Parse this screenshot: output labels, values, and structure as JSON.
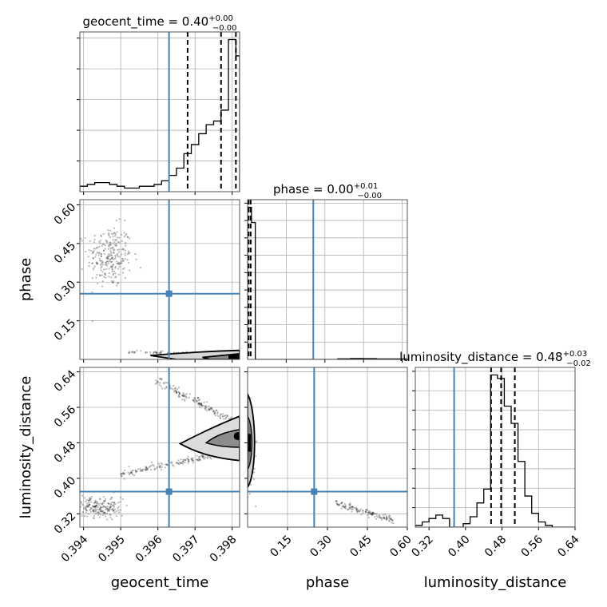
{
  "figure": {
    "colors": {
      "truth": "#4682b4",
      "hist": "#000000",
      "grid": "#b0b0b0",
      "quantile": "#000000",
      "density": "#000000"
    }
  },
  "chart_data": [
    {
      "panel": "geocent_time-1d",
      "type": "histogram",
      "title": {
        "prefix": "geocent_time = 0.40",
        "sup": "+0.00",
        "sub": "−0.00"
      },
      "xlim": [
        0.3939,
        0.3982
      ],
      "x_ticks": [
        0.394,
        0.395,
        0.396,
        0.397,
        0.398
      ],
      "truth": 0.3963,
      "quantiles": [
        0.3968,
        0.3977,
        0.3981
      ],
      "bin_edges": [
        0.3939,
        0.3941,
        0.3943,
        0.3945,
        0.3947,
        0.3949,
        0.3951,
        0.3953,
        0.3955,
        0.3957,
        0.3959,
        0.3961,
        0.3963,
        0.3965,
        0.3967,
        0.3969,
        0.3971,
        0.3973,
        0.3975,
        0.3977,
        0.3979,
        0.3981,
        0.3982
      ],
      "counts": [
        3,
        4,
        5,
        5,
        4,
        3,
        2,
        2,
        3,
        3,
        4,
        6,
        9,
        13,
        21,
        26,
        32,
        37,
        39,
        45,
        84,
        75
      ],
      "grid": true
    },
    {
      "panel": "phase-vs-geocent_time",
      "type": "scatter-density",
      "xlabel": "",
      "ylabel": "phase",
      "xlim": [
        0.3939,
        0.3982
      ],
      "ylim": [
        0.0,
        0.62
      ],
      "x_ticks": [
        0.394,
        0.395,
        0.396,
        0.397,
        0.398
      ],
      "y_ticks": [
        0.15,
        0.3,
        0.45,
        0.6
      ],
      "y_tick_labels": [
        "0.15",
        "0.30",
        "0.45",
        "0.60"
      ],
      "truth": {
        "x": 0.3963,
        "y": 0.255
      },
      "clusters": [
        {
          "center": [
            0.3947,
            0.4
          ],
          "spread": [
            0.0003,
            0.06
          ]
        },
        {
          "center": [
            0.397,
            0.02
          ],
          "spread": [
            0.001,
            0.008
          ]
        }
      ],
      "grid": true
    },
    {
      "panel": "phase-1d",
      "type": "histogram",
      "title": {
        "prefix": "phase = 0.00",
        "sup": "+0.01",
        "sub": "−0.00"
      },
      "xlim": [
        0.0,
        0.62
      ],
      "x_ticks": [
        0.15,
        0.3,
        0.45,
        0.6
      ],
      "truth": 0.255,
      "quantiles": [
        0.002,
        0.004,
        0.012
      ],
      "bin_edges": [
        0.0,
        0.015,
        0.03,
        0.05,
        0.1,
        0.2,
        0.3,
        0.35,
        0.4,
        0.45,
        0.5,
        0.62
      ],
      "counts": [
        100,
        90,
        0,
        0,
        0,
        0,
        0,
        0.4,
        0.6,
        0.5,
        0.3
      ],
      "grid": true
    },
    {
      "panel": "luminosity_distance-vs-geocent_time",
      "type": "scatter-density",
      "xlabel": "geocent_time",
      "ylabel": "luminosity_distance",
      "xlim": [
        0.3939,
        0.3982
      ],
      "ylim": [
        0.29,
        0.65
      ],
      "x_ticks": [
        0.394,
        0.395,
        0.396,
        0.397,
        0.398
      ],
      "x_tick_labels": [
        "0.394",
        "0.395",
        "0.396",
        "0.397",
        "0.398"
      ],
      "y_ticks": [
        0.32,
        0.4,
        0.48,
        0.56,
        0.64
      ],
      "y_tick_labels": [
        "0.32",
        "0.40",
        "0.48",
        "0.56",
        "0.64"
      ],
      "truth": {
        "x": 0.3963,
        "y": 0.37
      },
      "clusters": [
        {
          "center": [
            0.3944,
            0.335
          ],
          "spread": [
            0.0003,
            0.012
          ]
        }
      ],
      "grid": true
    },
    {
      "panel": "luminosity_distance-vs-phase",
      "type": "scatter-density",
      "xlabel": "phase",
      "ylabel": "",
      "xlim": [
        0.0,
        0.6
      ],
      "ylim": [
        0.29,
        0.65
      ],
      "x_ticks": [
        0.15,
        0.3,
        0.45,
        0.6
      ],
      "x_tick_labels": [
        "0.15",
        "0.30",
        "0.45",
        "0.60"
      ],
      "y_ticks": [
        0.32,
        0.4,
        0.48,
        0.56,
        0.64
      ],
      "truth": {
        "x": 0.25,
        "y": 0.37
      },
      "grid": true
    },
    {
      "panel": "luminosity_distance-1d",
      "type": "histogram",
      "title": {
        "prefix": "luminosity_distance = 0.48",
        "sup": "+0.03",
        "sub": "−0.02"
      },
      "xlabel": "luminosity_distance",
      "xlim": [
        0.29,
        0.64
      ],
      "x_ticks": [
        0.32,
        0.4,
        0.48,
        0.56,
        0.64
      ],
      "x_tick_labels": [
        "0.32",
        "0.40",
        "0.48",
        "0.56",
        "0.64"
      ],
      "truth": 0.375,
      "quantiles": [
        0.456,
        0.478,
        0.508
      ],
      "bin_edges": [
        0.29,
        0.305,
        0.32,
        0.335,
        0.35,
        0.365,
        0.38,
        0.395,
        0.41,
        0.425,
        0.44,
        0.455,
        0.47,
        0.485,
        0.5,
        0.515,
        0.53,
        0.545,
        0.56,
        0.575,
        0.59,
        0.605,
        0.62,
        0.64
      ],
      "counts": [
        1,
        3,
        5,
        7,
        5,
        0,
        0,
        2,
        6,
        14,
        22,
        88,
        86,
        70,
        60,
        38,
        18,
        8,
        3,
        1,
        0,
        0,
        0
      ],
      "grid": true
    }
  ]
}
